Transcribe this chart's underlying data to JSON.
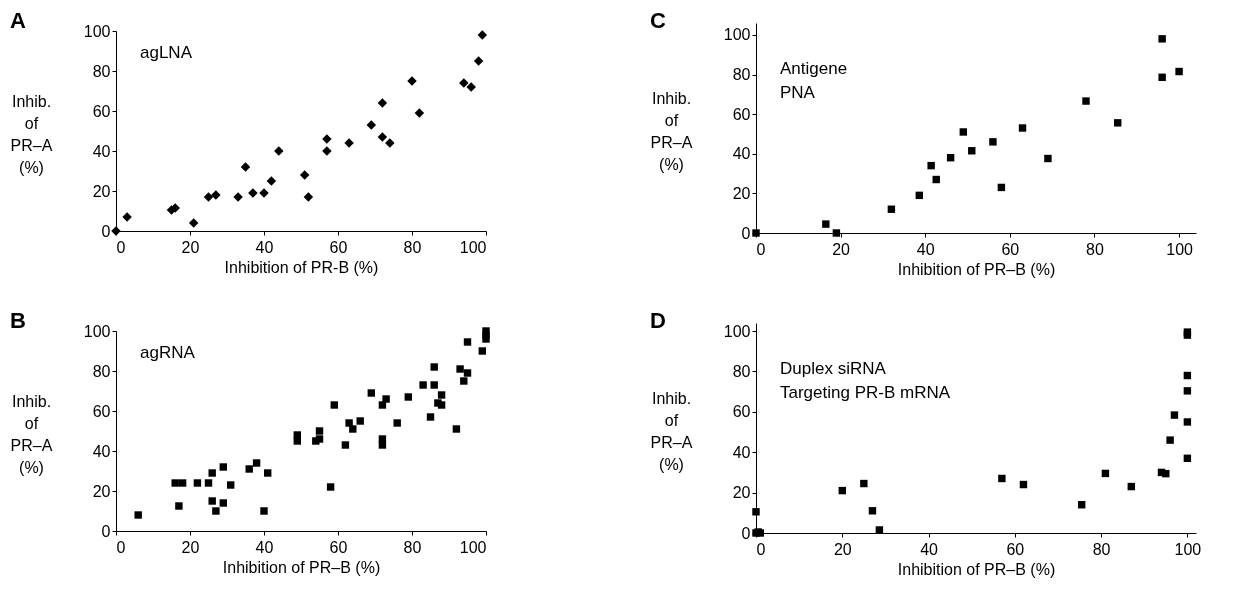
{
  "chart_data": [
    {
      "type": "scatter",
      "title": "A",
      "annotations": [
        "agLNA"
      ],
      "xlabel": "Inhibition of PR-B (%)",
      "ylabel": "Inhib. of PR–A (%)",
      "marker": "diamond",
      "color": "#000000",
      "x": [
        0,
        3,
        15,
        16,
        21,
        25,
        27,
        33,
        35,
        37,
        40,
        42,
        44,
        51,
        52,
        57,
        57,
        63,
        69,
        72,
        72,
        74,
        80,
        82,
        94,
        96,
        98,
        99
      ],
      "values": [
        0,
        7,
        10.5,
        11.5,
        4,
        17,
        18,
        17,
        32,
        19,
        19,
        25,
        40,
        28,
        17,
        46,
        40,
        44,
        53,
        47,
        64,
        44,
        75,
        59,
        74,
        72,
        85,
        98
      ],
      "xlim": [
        0,
        100
      ],
      "ylim": [
        0,
        100
      ],
      "xticks": [
        0,
        20,
        40,
        60,
        80,
        100
      ],
      "yticks": [
        0,
        20,
        40,
        60,
        80,
        100
      ]
    },
    {
      "type": "scatter",
      "title": "B",
      "annotations": [
        "agRNA"
      ],
      "xlabel": "Inhibition of PR–B (%)",
      "ylabel": "Inhib. of PR–A (%)",
      "marker": "square",
      "color": "#000000",
      "x": [
        6,
        16,
        18,
        17,
        22,
        25,
        26,
        26,
        27,
        29,
        29,
        31,
        36,
        38,
        40,
        41,
        49,
        49,
        54,
        55,
        55,
        58,
        59,
        62,
        63,
        64,
        66,
        69,
        72,
        72,
        72,
        73,
        76,
        79,
        83,
        85,
        86,
        86,
        87,
        88,
        88,
        92,
        93,
        94,
        95,
        95,
        99,
        100,
        100,
        100
      ],
      "values": [
        8,
        24,
        24,
        12.5,
        24,
        24,
        29,
        15,
        10,
        32,
        14,
        23,
        31,
        34,
        10,
        29,
        48,
        45,
        45,
        46,
        50,
        22,
        63,
        43,
        54,
        51,
        55,
        69,
        63,
        46,
        43,
        66,
        54,
        67,
        73,
        57,
        82,
        73,
        64,
        63,
        68,
        51,
        81,
        75,
        79,
        94.5,
        90,
        100,
        98,
        96
      ],
      "xlim": [
        0,
        100
      ],
      "ylim": [
        0,
        100
      ],
      "xticks": [
        0,
        20,
        40,
        60,
        80,
        100
      ],
      "yticks": [
        0,
        20,
        40,
        60,
        80,
        100
      ]
    },
    {
      "type": "scatter",
      "title": "C",
      "annotations": [
        "Antigene",
        "PNA"
      ],
      "xlabel": "Inhibition of PR–B (%)",
      "ylabel": "Inhib. of PR–A (%)",
      "marker": "square",
      "color": "#000000",
      "x": [
        0,
        16.5,
        19,
        32,
        38.6,
        41.4,
        42.6,
        46,
        49,
        51,
        56,
        58,
        63,
        69,
        78,
        85.5,
        96,
        96,
        100
      ],
      "values": [
        0,
        4.5,
        0,
        12,
        19,
        34,
        27,
        38,
        51,
        41.5,
        46,
        23,
        53,
        37.6,
        66.6,
        55.6,
        98,
        78.6,
        81.5
      ],
      "xlim": [
        0,
        104
      ],
      "ylim": [
        0,
        106
      ],
      "xticks": [
        0,
        20,
        40,
        60,
        80,
        100
      ],
      "yticks": [
        0,
        20,
        40,
        60,
        80,
        100
      ]
    },
    {
      "type": "scatter",
      "title": "D",
      "annotations": [
        "Duplex siRNA",
        "Targeting PR-B mRNA"
      ],
      "xlabel": "Inhibition of PR–B (%)",
      "ylabel": "Inhib. of PR–A (%)",
      "marker": "square",
      "color": "#000000",
      "x": [
        0,
        0.5,
        1,
        0,
        20,
        25,
        27,
        28.6,
        57,
        62,
        75.5,
        81,
        87,
        94,
        95,
        96,
        97,
        100,
        100,
        100,
        100,
        100,
        100
      ],
      "values": [
        0,
        0.5,
        0,
        10.5,
        21,
        24.5,
        11,
        1.5,
        27,
        24,
        14,
        29.5,
        23,
        30,
        29.4,
        46,
        58.4,
        37,
        55,
        70.4,
        78,
        99.5,
        98
      ],
      "xlim": [
        0,
        102
      ],
      "ylim": [
        0,
        104
      ],
      "xticks": [
        0,
        20,
        40,
        60,
        80,
        100
      ],
      "yticks": [
        0,
        20,
        40,
        60,
        80,
        100
      ]
    }
  ]
}
